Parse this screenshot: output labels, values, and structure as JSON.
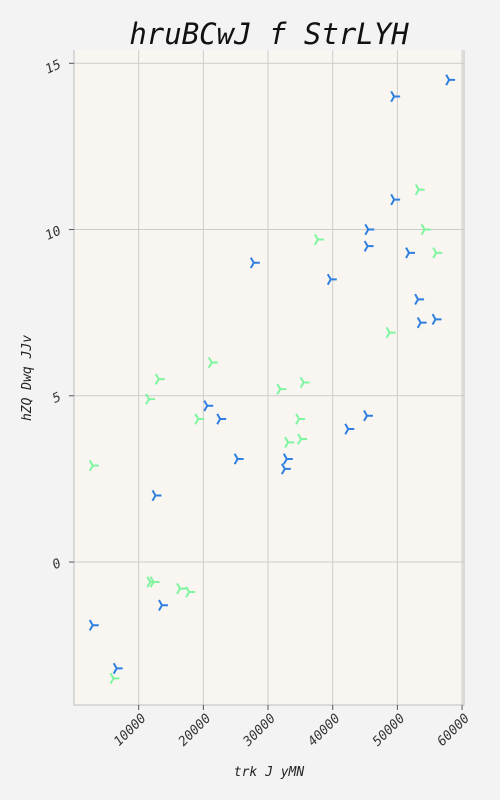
{
  "chart_data": {
    "type": "scatter",
    "title": "hruBCwJ  f StrLYH",
    "xlabel": "trk J yMN",
    "ylabel": "hZQ Dwq  JJv",
    "xlim": [
      0,
      60300
    ],
    "ylim": [
      -4.3,
      15.4
    ],
    "xticks": [
      10000,
      20000,
      30000,
      40000,
      50000,
      60000
    ],
    "xtick_labels": [
      "10000",
      "20000",
      "30000",
      "40000",
      "50000",
      "60000"
    ],
    "yticks": [
      0,
      5,
      10,
      15
    ],
    "ytick_labels": [
      "0",
      "5",
      "10",
      "15"
    ],
    "grid": true,
    "marker": "tri_down",
    "background": "#f9f6f1",
    "series": [
      {
        "color": "#2f7fe0",
        "points": [
          [
            58000,
            14.5
          ],
          [
            49500,
            14.0
          ],
          [
            49500,
            10.9
          ],
          [
            45500,
            10.0
          ],
          [
            45400,
            9.5
          ],
          [
            51800,
            9.3
          ],
          [
            27800,
            9.0
          ],
          [
            39700,
            8.5
          ],
          [
            53200,
            7.9
          ],
          [
            53600,
            7.2
          ],
          [
            55900,
            7.3
          ],
          [
            20600,
            4.7
          ],
          [
            22600,
            4.3
          ],
          [
            45300,
            4.4
          ],
          [
            42400,
            4.0
          ],
          [
            25300,
            3.1
          ],
          [
            32900,
            3.1
          ],
          [
            32600,
            2.8
          ],
          [
            12600,
            2.0
          ],
          [
            13600,
            -1.3
          ],
          [
            2900,
            -1.9
          ],
          [
            6600,
            -3.2
          ]
        ]
      },
      {
        "color": "#7ff5a0",
        "points": [
          [
            53300,
            11.2
          ],
          [
            54200,
            10.0
          ],
          [
            56000,
            9.3
          ],
          [
            37700,
            9.7
          ],
          [
            48800,
            6.9
          ],
          [
            21300,
            6.0
          ],
          [
            13100,
            5.5
          ],
          [
            35500,
            5.4
          ],
          [
            31900,
            5.2
          ],
          [
            11600,
            4.9
          ],
          [
            19200,
            4.3
          ],
          [
            34800,
            4.3
          ],
          [
            33100,
            3.6
          ],
          [
            35100,
            3.7
          ],
          [
            2900,
            2.9
          ],
          [
            11800,
            -0.6
          ],
          [
            12300,
            -0.6
          ],
          [
            16400,
            -0.8
          ],
          [
            17800,
            -0.9
          ],
          [
            6100,
            -3.5
          ]
        ]
      }
    ]
  }
}
